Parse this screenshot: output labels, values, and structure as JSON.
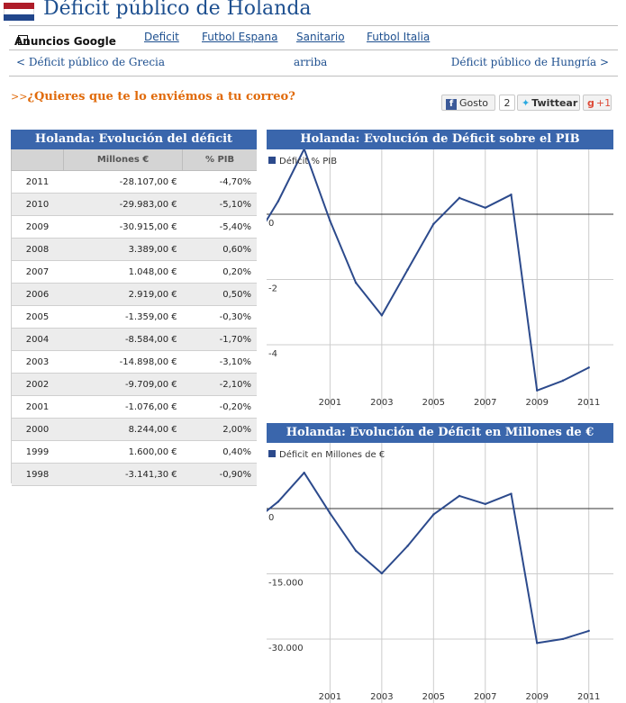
{
  "colors": {
    "brand_blue": "#3a66ac",
    "line_blue": "#2c4a8c",
    "orange": "#e06a0a",
    "flag_red": "#ae1c28",
    "flag_white": "#ffffff",
    "flag_blue": "#21468b"
  },
  "page": {
    "title": "Déficit público de Holanda"
  },
  "topnav": {
    "ads": "Anuncios Google",
    "links": [
      "Deficit",
      "Futbol Espana",
      "Sanitario",
      "Futbol Italia"
    ]
  },
  "prevnext": {
    "prev": "< Déficit público de Grecia",
    "up": "arriba",
    "next": "Déficit público de Hungría >"
  },
  "share": {
    "arrows": ">>",
    "mail_text": "¿Quieres que te lo enviémos a tu correo?",
    "like_label": "Gosto",
    "like_count": "2",
    "tweet_label": "Twittear",
    "gplus_label": "+1"
  },
  "table": {
    "title": "Holanda: Evolución del déficit",
    "headers": [
      "",
      "Millones €",
      "% PIB"
    ],
    "rows": [
      [
        "2011",
        "-28.107,00 €",
        "-4,70%"
      ],
      [
        "2010",
        "-29.983,00 €",
        "-5,10%"
      ],
      [
        "2009",
        "-30.915,00 €",
        "-5,40%"
      ],
      [
        "2008",
        "3.389,00 €",
        "0,60%"
      ],
      [
        "2007",
        "1.048,00 €",
        "0,20%"
      ],
      [
        "2006",
        "2.919,00 €",
        "0,50%"
      ],
      [
        "2005",
        "-1.359,00 €",
        "-0,30%"
      ],
      [
        "2004",
        "-8.584,00 €",
        "-1,70%"
      ],
      [
        "2003",
        "-14.898,00 €",
        "-3,10%"
      ],
      [
        "2002",
        "-9.709,00 €",
        "-2,10%"
      ],
      [
        "2001",
        "-1.076,00 €",
        "-0,20%"
      ],
      [
        "2000",
        "8.244,00 €",
        "2,00%"
      ],
      [
        "1999",
        "1.600,00 €",
        "0,40%"
      ],
      [
        "1998",
        "-3.141,30 €",
        "-0,90%"
      ]
    ]
  },
  "chart_data": [
    {
      "type": "line",
      "title": "Holanda: Evolución de Déficit sobre el PIB",
      "x": [
        1998,
        1999,
        2000,
        2001,
        2002,
        2003,
        2004,
        2005,
        2006,
        2007,
        2008,
        2009,
        2010,
        2011
      ],
      "series": [
        {
          "name": "Déficit % PIB",
          "values": [
            -0.9,
            0.4,
            2.0,
            -0.2,
            -2.1,
            -3.1,
            -1.7,
            -0.3,
            0.5,
            0.2,
            0.6,
            -5.4,
            -5.1,
            -4.7
          ]
        }
      ],
      "y_ticks": [
        0,
        -2,
        -4
      ],
      "y_tick_labels": [
        "0",
        "-2",
        "-4"
      ],
      "x_tick_labels": [
        "2001",
        "2003",
        "2005",
        "2007",
        "2009",
        "2011"
      ],
      "legend": "top-left",
      "grid": true
    },
    {
      "type": "line",
      "title": "Holanda: Evolución de Déficit en Millones de €",
      "x": [
        1998,
        1999,
        2000,
        2001,
        2002,
        2003,
        2004,
        2005,
        2006,
        2007,
        2008,
        2009,
        2010,
        2011
      ],
      "series": [
        {
          "name": "Déficit en Millones de €",
          "values": [
            -3141.3,
            1600,
            8244,
            -1076,
            -9709,
            -14898,
            -8584,
            -1359,
            2919,
            1048,
            3389,
            -30915,
            -29983,
            -28107
          ]
        }
      ],
      "y_ticks": [
        0,
        -15000,
        -30000
      ],
      "y_tick_labels": [
        "0",
        "-15.000",
        "-30.000"
      ],
      "x_tick_labels": [
        "2001",
        "2003",
        "2005",
        "2007",
        "2009",
        "2011"
      ],
      "legend": "top-left",
      "grid": true
    }
  ]
}
